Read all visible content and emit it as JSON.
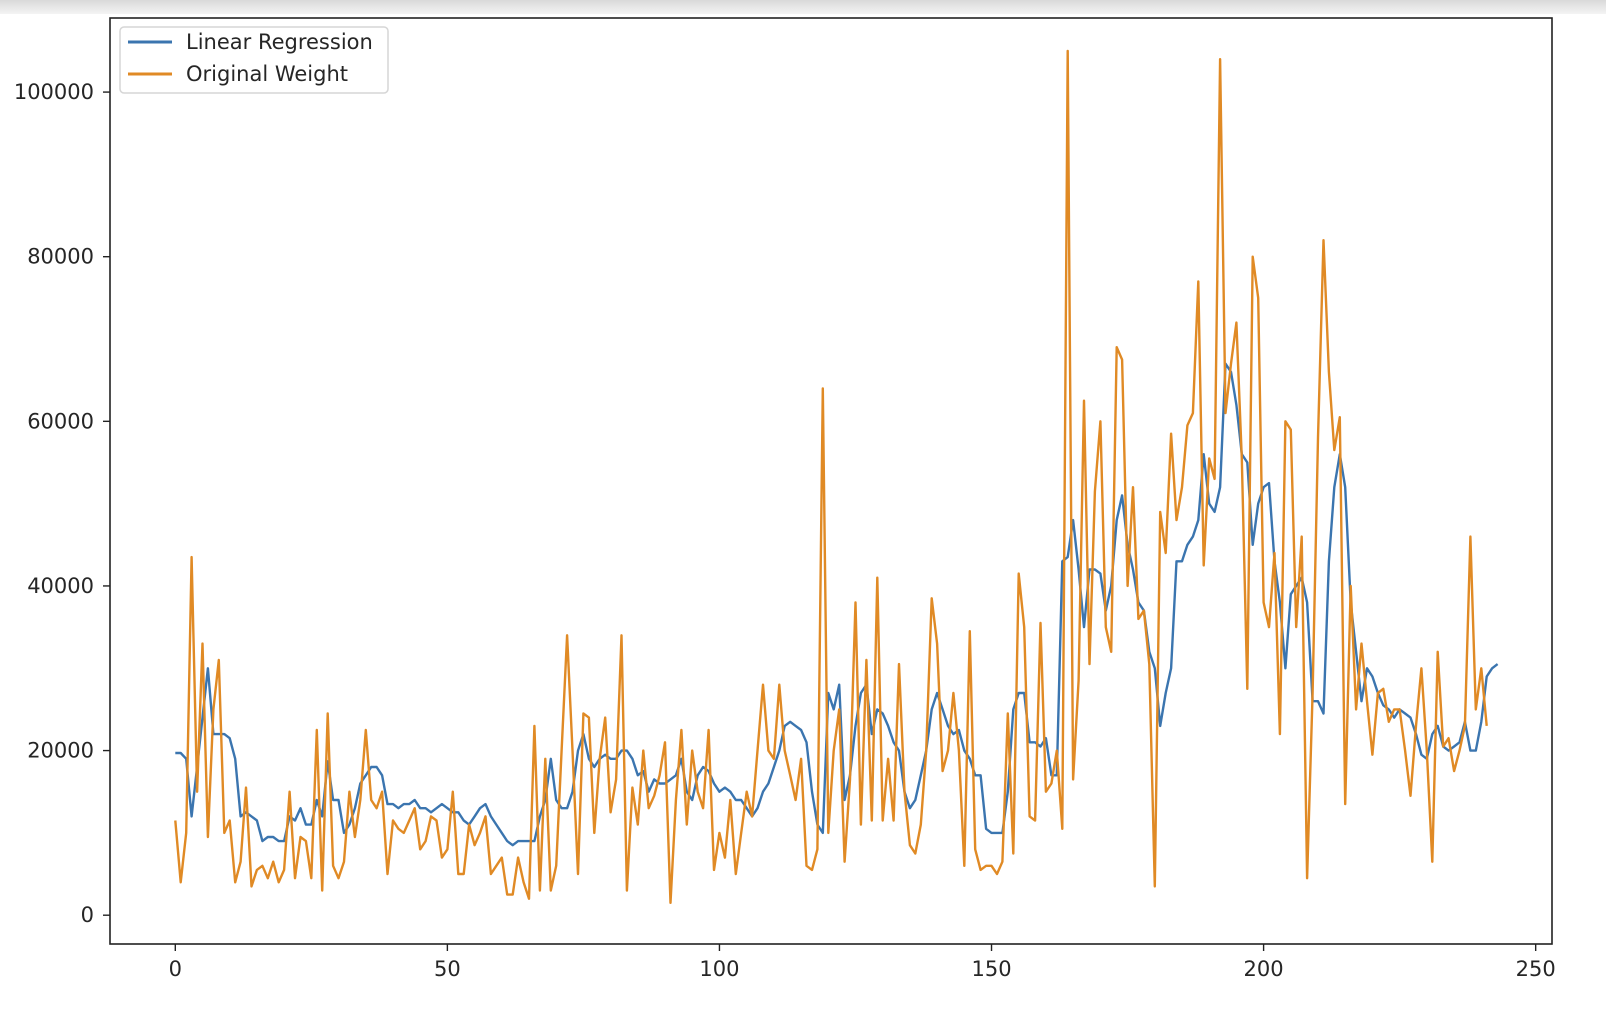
{
  "chart_data": {
    "type": "line",
    "title": "",
    "xlabel": "",
    "ylabel": "",
    "xlim": [
      -12,
      253
    ],
    "ylim": [
      -3500,
      109000
    ],
    "xticks": [
      0,
      50,
      100,
      150,
      200,
      250
    ],
    "yticks": [
      0,
      20000,
      40000,
      60000,
      80000,
      100000
    ],
    "grid": false,
    "legend_position": "top-left",
    "series": [
      {
        "name": "Linear Regression",
        "color": "#3b75af",
        "values": [
          19700,
          19700,
          19000,
          12000,
          18000,
          24000,
          30000,
          22000,
          22000,
          22000,
          21500,
          19000,
          12000,
          12500,
          12000,
          11500,
          9000,
          9500,
          9500,
          9000,
          9000,
          12000,
          11500,
          13000,
          11000,
          11000,
          14000,
          12000,
          18700,
          14000,
          14000,
          10000,
          11000,
          13000,
          16000,
          17000,
          18000,
          18000,
          17000,
          13500,
          13500,
          13000,
          13500,
          13500,
          14000,
          13000,
          13000,
          12500,
          13000,
          13500,
          13000,
          12500,
          12500,
          11500,
          11000,
          12000,
          13000,
          13500,
          12000,
          11000,
          10000,
          9000,
          8500,
          9000,
          9000,
          9000,
          9000,
          12000,
          14000,
          19000,
          14000,
          13000,
          13000,
          15000,
          20000,
          22000,
          19000,
          18000,
          19000,
          19500,
          19000,
          19000,
          20000,
          20000,
          19000,
          17000,
          17500,
          15000,
          16500,
          16000,
          16000,
          16500,
          17000,
          19000,
          15000,
          14000,
          17000,
          18000,
          17500,
          16000,
          15000,
          15500,
          15000,
          14000,
          14000,
          13000,
          12000,
          13000,
          15000,
          16000,
          18000,
          20000,
          23000,
          23500,
          23000,
          22500,
          21000,
          15000,
          11000,
          10000,
          27000,
          25000,
          28000,
          14000,
          17000,
          23000,
          27000,
          28000,
          22000,
          25000,
          24500,
          23000,
          21000,
          20000,
          15000,
          13000,
          14000,
          17000,
          20000,
          25000,
          27000,
          25000,
          23000,
          22000,
          22500,
          20000,
          19000,
          17000,
          17000,
          10500,
          10000,
          10000,
          10000,
          15000,
          25000,
          27000,
          27000,
          21000,
          21000,
          20500,
          21500,
          17000,
          17000,
          43000,
          43500,
          48000,
          42000,
          35000,
          42000,
          42000,
          41500,
          37000,
          40000,
          48000,
          51000,
          45000,
          42000,
          38000,
          37000,
          32000,
          30000,
          23000,
          27000,
          30000,
          43000,
          43000,
          45000,
          46000,
          48000,
          56000,
          50000,
          49000,
          52000,
          67000,
          66000,
          62000,
          56000,
          55000,
          45000,
          50000,
          52000,
          52500,
          43000,
          38000,
          30000,
          39000,
          40000,
          41000,
          38000,
          26000,
          26000,
          24500,
          43000,
          52000,
          56000,
          52000,
          38000,
          32000,
          26000,
          30000,
          29000,
          27000,
          25500,
          25000,
          24000,
          25000,
          24500,
          24000,
          22000,
          19500,
          19000,
          22000,
          23000,
          20500,
          20000,
          20500,
          21000,
          23500,
          20000,
          20000,
          23500,
          29000,
          30000,
          30500
        ]
      },
      {
        "name": "Original Weight",
        "color": "#e08a25",
        "values": [
          11500,
          4000,
          10000,
          43500,
          15000,
          33000,
          9500,
          25000,
          31000,
          10000,
          11500,
          4000,
          6500,
          15500,
          3500,
          5500,
          6000,
          4500,
          6500,
          4000,
          5500,
          15000,
          4500,
          9500,
          9000,
          4500,
          22500,
          3000,
          24500,
          6000,
          4500,
          6500,
          15000,
          9500,
          14000,
          22500,
          14000,
          13000,
          15000,
          5000,
          11500,
          10500,
          10000,
          11500,
          13000,
          8000,
          9000,
          12000,
          11500,
          7000,
          8000,
          15000,
          5000,
          5000,
          11000,
          8500,
          10000,
          12000,
          5000,
          6000,
          7000,
          2500,
          2500,
          7000,
          4000,
          2000,
          23000,
          3000,
          19000,
          3000,
          6000,
          20000,
          34000,
          20000,
          5000,
          24500,
          24000,
          10000,
          19000,
          24000,
          12500,
          16500,
          34000,
          3000,
          15500,
          11000,
          20000,
          13000,
          14500,
          17000,
          21000,
          1500,
          14000,
          22500,
          11000,
          20000,
          15000,
          13000,
          22500,
          5500,
          10000,
          7000,
          14000,
          5000,
          10000,
          15000,
          12000,
          20000,
          28000,
          20000,
          19000,
          28000,
          20000,
          17000,
          14000,
          19000,
          6000,
          5500,
          8000,
          64000,
          10000,
          20000,
          25000,
          6500,
          16500,
          38000,
          11000,
          31000,
          11500,
          41000,
          11500,
          19000,
          11500,
          30500,
          15000,
          8500,
          7500,
          11000,
          20000,
          38500,
          33000,
          17500,
          20000,
          27000,
          20000,
          6000,
          34500,
          8000,
          5500,
          6000,
          6000,
          5000,
          6500,
          24500,
          7500,
          41500,
          35000,
          12000,
          11500,
          35500,
          15000,
          16000,
          20000,
          10500,
          105000,
          16500,
          28500,
          62500,
          30500,
          51500,
          60000,
          35000,
          32000,
          69000,
          67500,
          40000,
          52000,
          36000,
          37000,
          30500,
          3500,
          49000,
          44000,
          58500,
          48000,
          52000,
          59500,
          61000,
          77000,
          42500,
          55500,
          53000,
          104000,
          61000,
          67000,
          72000,
          55500,
          27500,
          80000,
          75000,
          38000,
          35000,
          44000,
          22000,
          60000,
          59000,
          35000,
          46000,
          4500,
          27000,
          58000,
          82000,
          66000,
          56500,
          60500,
          13500,
          40000,
          25000,
          33000,
          26000,
          19500,
          27000,
          27500,
          23500,
          25000,
          25000,
          20000,
          14500,
          23000,
          30000,
          20000,
          6500,
          32000,
          20500,
          21500,
          17500,
          20000,
          23000,
          46000,
          25000,
          30000,
          23000
        ]
      }
    ]
  }
}
